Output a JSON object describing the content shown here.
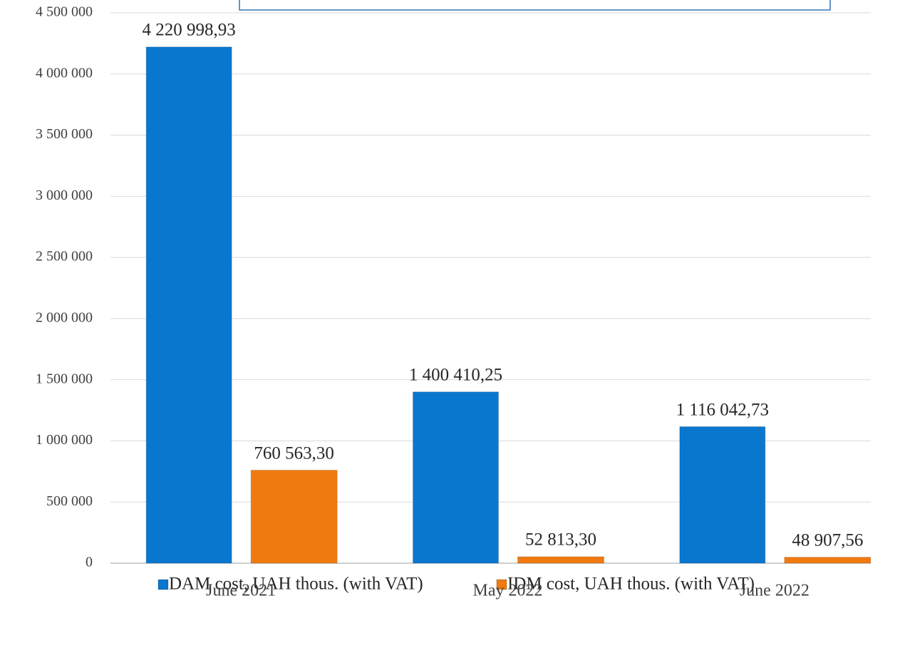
{
  "chart_data": {
    "type": "bar",
    "categories": [
      "June 2021",
      "May 2022",
      "June 2022"
    ],
    "series": [
      {
        "name": "DAM cost, UAH thous. (with VAT)",
        "color": "#0a77cf",
        "values": [
          4220998.93,
          1400410.25,
          1116042.73
        ],
        "value_labels": [
          "4 220 998,93",
          "1 400 410,25",
          "1 116 042,73"
        ]
      },
      {
        "name": "IDM cost, UAH thous. (with VAT)",
        "color": "#f07a10",
        "values": [
          760563.3,
          52813.3,
          48907.56
        ],
        "value_labels": [
          "760 563,30",
          "52 813,30",
          "48 907,56"
        ]
      }
    ],
    "ylim": [
      0,
      4500000
    ],
    "yticks": [
      0,
      {
        "value": 500000,
        "label": "500 000"
      },
      {
        "value": 1000000,
        "label": "1 000 000"
      },
      {
        "value": 1500000,
        "label": "1 500 000"
      },
      {
        "value": 2000000,
        "label": "2 000 000"
      },
      {
        "value": 2500000,
        "label": "2 500 000"
      },
      {
        "value": 3000000,
        "label": "3 000 000"
      },
      {
        "value": 3500000,
        "label": "3 500 000"
      },
      {
        "value": 4000000,
        "label": "4 000 000"
      },
      {
        "value": 4500000,
        "label": "4 500 000"
      }
    ],
    "grid": true,
    "legend": "bottom"
  }
}
